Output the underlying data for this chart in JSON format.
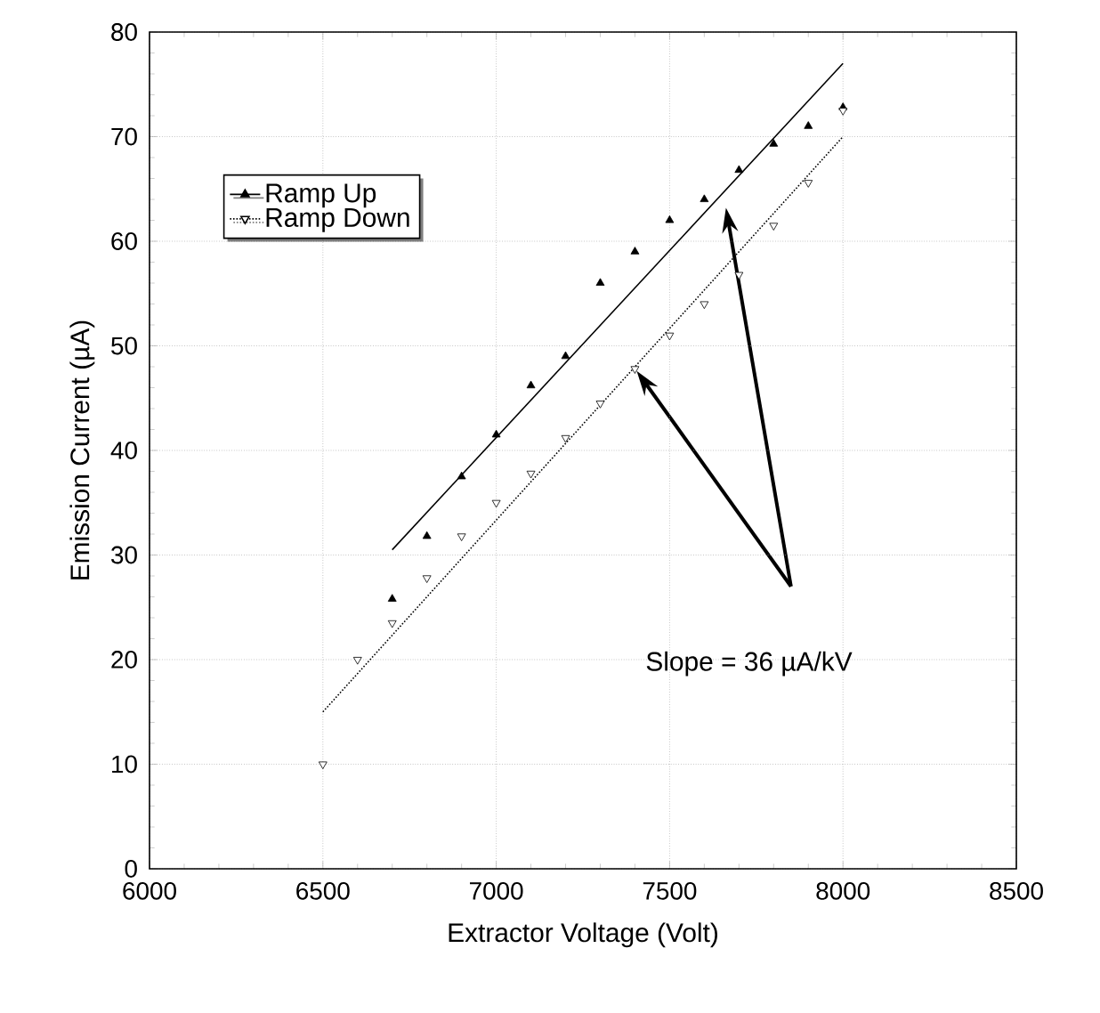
{
  "chart_data": {
    "type": "scatter",
    "xlabel": "Extractor Voltage (Volt)",
    "ylabel": "Emission Current (µA)",
    "xlim": [
      6000,
      8500
    ],
    "xticks": [
      6000,
      6500,
      7000,
      7500,
      8000,
      8500
    ],
    "ylim": [
      0,
      80
    ],
    "yticks": [
      0,
      10,
      20,
      30,
      40,
      50,
      60,
      70,
      80
    ],
    "grid": true,
    "legend": "top left",
    "annotations": [
      "Slope = 36 µA/kV"
    ],
    "series": [
      {
        "name": "Ramp Up",
        "marker": "triangle",
        "line_style": "solid",
        "color": "#000000",
        "x": [
          6700,
          6800,
          6900,
          7000,
          7100,
          7200,
          7300,
          7400,
          7500,
          7600,
          7700,
          7800,
          7900,
          8000
        ],
        "values": [
          25.8,
          31.8,
          37.5,
          41.5,
          46.2,
          49,
          56,
          59,
          62,
          64,
          66.8,
          69.3,
          71,
          72.8
        ]
      },
      {
        "name": "Ramp Down",
        "marker": "triangle-down",
        "line_style": "dotted",
        "color": "#000000",
        "x": [
          6500,
          6600,
          6700,
          6800,
          6900,
          7000,
          7100,
          7200,
          7300,
          7400,
          7500,
          7600,
          7700,
          7800,
          7900,
          8000
        ],
        "values": [
          10,
          20,
          23.5,
          27.8,
          31.8,
          35,
          37.8,
          41.2,
          44.5,
          47.8,
          51,
          54,
          56.8,
          61.5,
          65.6,
          72.5
        ]
      },
      {
        "type": "line",
        "line_style": "solid",
        "color": "#000000",
        "x": [
          6700,
          8000
        ],
        "values": [
          30.5,
          77
        ]
      },
      {
        "type": "line",
        "line_style": "dotted",
        "color": "#000000",
        "x": [
          6500,
          8000
        ],
        "values": [
          15,
          70
        ]
      }
    ]
  }
}
